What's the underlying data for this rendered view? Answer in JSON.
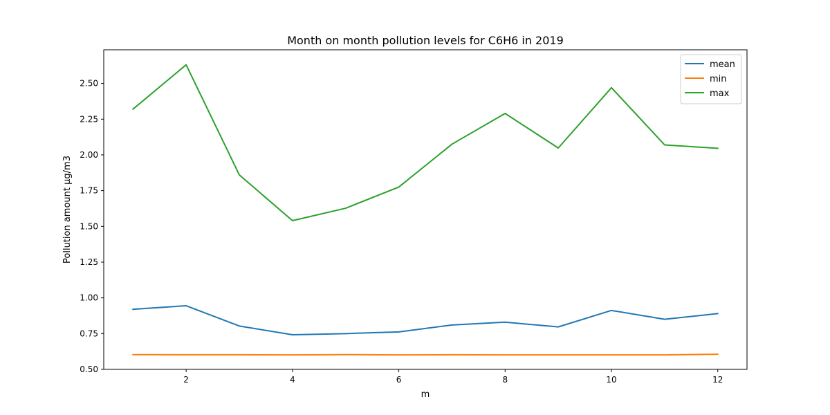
{
  "chart_data": {
    "type": "line",
    "title": "Month on month pollution levels for C6H6 in 2019",
    "xlabel": "m",
    "ylabel": "Pollution amount µg/m3",
    "x": [
      1,
      2,
      3,
      4,
      5,
      6,
      7,
      8,
      9,
      10,
      11,
      12
    ],
    "xlim": [
      0.45,
      12.55
    ],
    "ylim": [
      0.5,
      2.735
    ],
    "xticks": [
      2,
      4,
      6,
      8,
      10,
      12
    ],
    "xtick_labels": [
      "2",
      "4",
      "6",
      "8",
      "10",
      "12"
    ],
    "yticks": [
      0.5,
      0.75,
      1.0,
      1.25,
      1.5,
      1.75,
      2.0,
      2.25,
      2.5
    ],
    "ytick_labels": [
      "0.50",
      "0.75",
      "1.00",
      "1.25",
      "1.50",
      "1.75",
      "2.00",
      "2.25",
      "2.50"
    ],
    "grid": false,
    "legend_position": "upper right",
    "series": [
      {
        "name": "mean",
        "color": "#1f77b4",
        "values": [
          0.92,
          0.945,
          0.803,
          0.742,
          0.75,
          0.762,
          0.81,
          0.83,
          0.797,
          0.912,
          0.85,
          0.89
        ]
      },
      {
        "name": "min",
        "color": "#ff7f0e",
        "values": [
          0.603,
          0.602,
          0.602,
          0.601,
          0.603,
          0.601,
          0.602,
          0.601,
          0.601,
          0.601,
          0.601,
          0.606
        ]
      },
      {
        "name": "max",
        "color": "#2ca02c",
        "values": [
          2.32,
          2.63,
          1.86,
          1.54,
          1.627,
          1.775,
          2.075,
          2.29,
          2.048,
          2.47,
          2.07,
          2.046
        ]
      }
    ]
  }
}
